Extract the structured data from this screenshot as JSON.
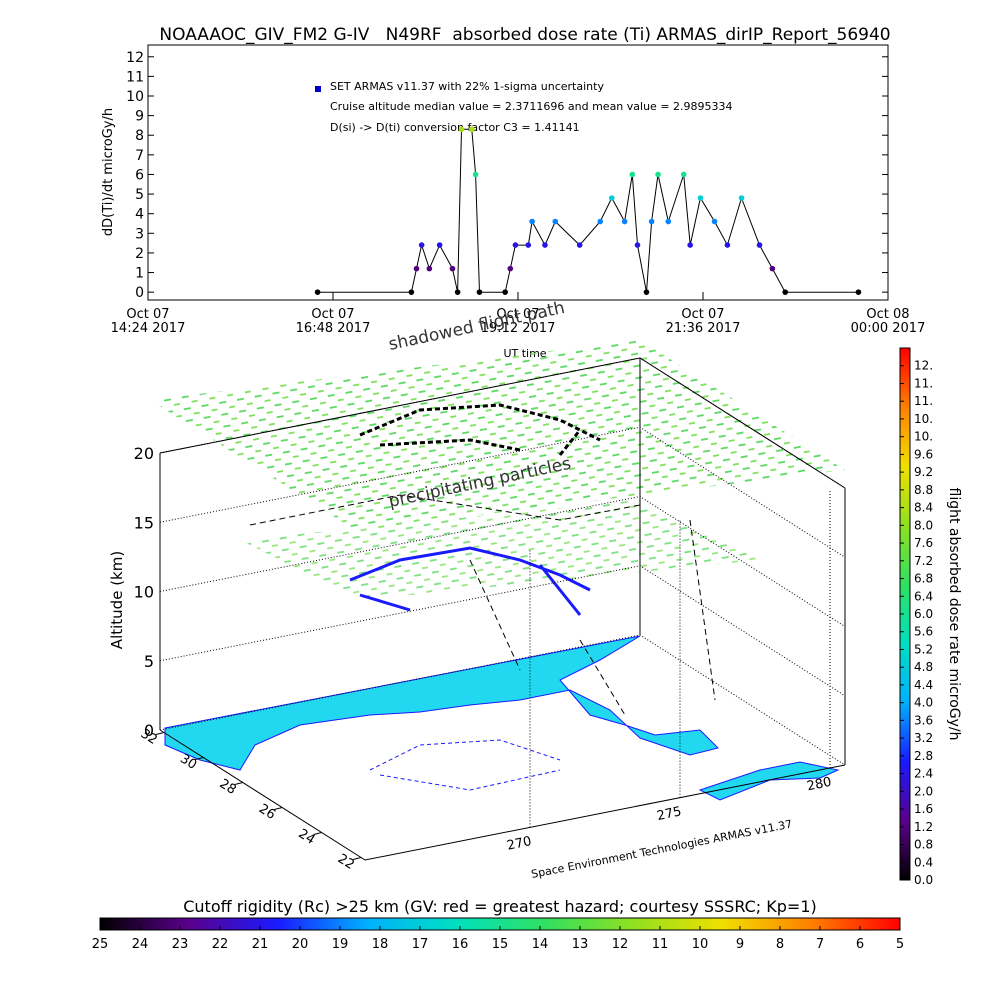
{
  "chart_data": [
    {
      "type": "line",
      "title": "NOAAAOC_GIV_FM2 G-IV   N49RF  absorbed dose rate (Ti) ARMAS_dirIP_Report_56940",
      "ylabel": "dD(Ti)/dt microGy/h",
      "xlabel": "UT time",
      "annotations": [
        "Cruise altitude median value = 2.3711696 and mean value = 2.9895334",
        "D(si) -> D(ti) conversion factor C3 = 1.41141"
      ],
      "xlim": [
        "2017-10-07T14:24",
        "2017-10-08T00:00"
      ],
      "xticks": [
        {
          "value": "2017-10-07T14:24",
          "label": "Oct 07\n14:24 2017"
        },
        {
          "value": "2017-10-07T16:48",
          "label": "Oct 07\n16:48 2017"
        },
        {
          "value": "2017-10-07T19:12",
          "label": "Oct 07\n19:12 2017"
        },
        {
          "value": "2017-10-07T21:36",
          "label": "Oct 07\n21:36 2017"
        },
        {
          "value": "2017-10-08T00:00",
          "label": "Oct 08\n00:00 2017"
        }
      ],
      "ylim": [
        -0.4,
        12.6
      ],
      "yticks": [
        0,
        1,
        2,
        3,
        4,
        5,
        6,
        7,
        8,
        9,
        10,
        11,
        12
      ],
      "series": [
        {
          "name": "SET ARMAS v11.37 with 22% 1-sigma uncertainty",
          "color": "#0000cc",
          "line_color": "#000000",
          "x": [
            "2017-10-07T16:36",
            "2017-10-07T17:49",
            "2017-10-07T17:53",
            "2017-10-07T17:57",
            "2017-10-07T18:03",
            "2017-10-07T18:11",
            "2017-10-07T18:21",
            "2017-10-07T18:25",
            "2017-10-07T18:28",
            "2017-10-07T18:36",
            "2017-10-07T18:39",
            "2017-10-07T18:42",
            "2017-10-07T19:02",
            "2017-10-07T19:06",
            "2017-10-07T19:10",
            "2017-10-07T19:20",
            "2017-10-07T19:23",
            "2017-10-07T19:33",
            "2017-10-07T19:41",
            "2017-10-07T20:00",
            "2017-10-07T20:16",
            "2017-10-07T20:25",
            "2017-10-07T20:35",
            "2017-10-07T20:41",
            "2017-10-07T20:45",
            "2017-10-07T20:52",
            "2017-10-07T20:56",
            "2017-10-07T21:01",
            "2017-10-07T21:09",
            "2017-10-07T21:21",
            "2017-10-07T21:26",
            "2017-10-07T21:34",
            "2017-10-07T21:45",
            "2017-10-07T21:55",
            "2017-10-07T22:06",
            "2017-10-07T22:20",
            "2017-10-07T22:30",
            "2017-10-07T22:40",
            "2017-10-07T23:37"
          ],
          "values": [
            0,
            0,
            1.2,
            2.4,
            1.2,
            2.4,
            1.2,
            0,
            8.3,
            8.3,
            6,
            0,
            0,
            1.2,
            2.4,
            2.4,
            3.6,
            2.4,
            3.6,
            2.4,
            3.6,
            4.8,
            3.6,
            6,
            2.4,
            0,
            3.6,
            6,
            3.6,
            6,
            2.4,
            4.8,
            3.6,
            2.4,
            4.8,
            2.4,
            1.2,
            0,
            0
          ]
        }
      ]
    },
    {
      "type": "map3d",
      "zlabel": "Altitude (km)",
      "zlim": [
        0,
        20
      ],
      "zticks": [
        0,
        5,
        10,
        15,
        20
      ],
      "ylim": [
        32.2,
        21.8
      ],
      "yticks": [
        32,
        30,
        28,
        26,
        24,
        22
      ],
      "xlim": [
        264.5,
        280.5
      ],
      "xticks": [
        270,
        275,
        280
      ],
      "annotations": [
        "shadowed flight path",
        "precipitating particles"
      ],
      "credit": "Space Environment Technologies ARMAS v11.37"
    },
    {
      "type": "colorbar",
      "orientation": "vertical",
      "label": "flight absorbed dose rate microGy/h",
      "clim": [
        0,
        12
      ],
      "colors": [
        "#000000",
        "#5a008c",
        "#1a1aff",
        "#00b0ff",
        "#00e0c0",
        "#30e060",
        "#90e020",
        "#f0e000",
        "#ff8000",
        "#ff0000"
      ],
      "ticks": [
        {
          "value": 0,
          "label": "0.0"
        },
        {
          "value": 0.4,
          "label": "0.4"
        },
        {
          "value": 0.8,
          "label": "0.8"
        },
        {
          "value": 1.2,
          "label": "1.2"
        },
        {
          "value": 1.6,
          "label": "1.6"
        },
        {
          "value": 2.0,
          "label": "2.0"
        },
        {
          "value": 2.4,
          "label": "2.4"
        },
        {
          "value": 2.8,
          "label": "2.8"
        },
        {
          "value": 3.2,
          "label": "3.2"
        },
        {
          "value": 3.6,
          "label": "3.6"
        },
        {
          "value": 4.0,
          "label": "4.0"
        },
        {
          "value": 4.4,
          "label": "4.4"
        },
        {
          "value": 4.8,
          "label": "4.8"
        },
        {
          "value": 5.2,
          "label": "5.2"
        },
        {
          "value": 5.6,
          "label": "5.6"
        },
        {
          "value": 6.0,
          "label": "6.0"
        },
        {
          "value": 6.4,
          "label": "6.4"
        },
        {
          "value": 6.8,
          "label": "6.8"
        },
        {
          "value": 7.2,
          "label": "7.2"
        },
        {
          "value": 7.6,
          "label": "7.6"
        },
        {
          "value": 8.0,
          "label": "8.0"
        },
        {
          "value": 8.4,
          "label": "8.4"
        },
        {
          "value": 8.8,
          "label": "8.8"
        },
        {
          "value": 9.2,
          "label": "9.2"
        },
        {
          "value": 9.6,
          "label": "9.6"
        },
        {
          "value": 10.0,
          "label": "10."
        },
        {
          "value": 10.4,
          "label": "10."
        },
        {
          "value": 10.8,
          "label": "11."
        },
        {
          "value": 11.2,
          "label": "11."
        },
        {
          "value": 11.6,
          "label": "12."
        }
      ]
    },
    {
      "type": "colorbar",
      "orientation": "horizontal",
      "label": "Cutoff rigidity (Rc) >25 km (GV: red = greatest hazard; courtesy SSSRC; Kp=1)",
      "clim": [
        25,
        5
      ],
      "colors": [
        "#000000",
        "#5a008c",
        "#1a1aff",
        "#00b0ff",
        "#00e0c0",
        "#30e060",
        "#90e020",
        "#f0e000",
        "#ff8000",
        "#ff0000"
      ],
      "ticks": [
        25,
        24,
        23,
        22,
        21,
        20,
        19,
        18,
        17,
        16,
        15,
        14,
        13,
        12,
        11,
        10,
        9,
        8,
        7,
        6,
        5
      ]
    }
  ]
}
